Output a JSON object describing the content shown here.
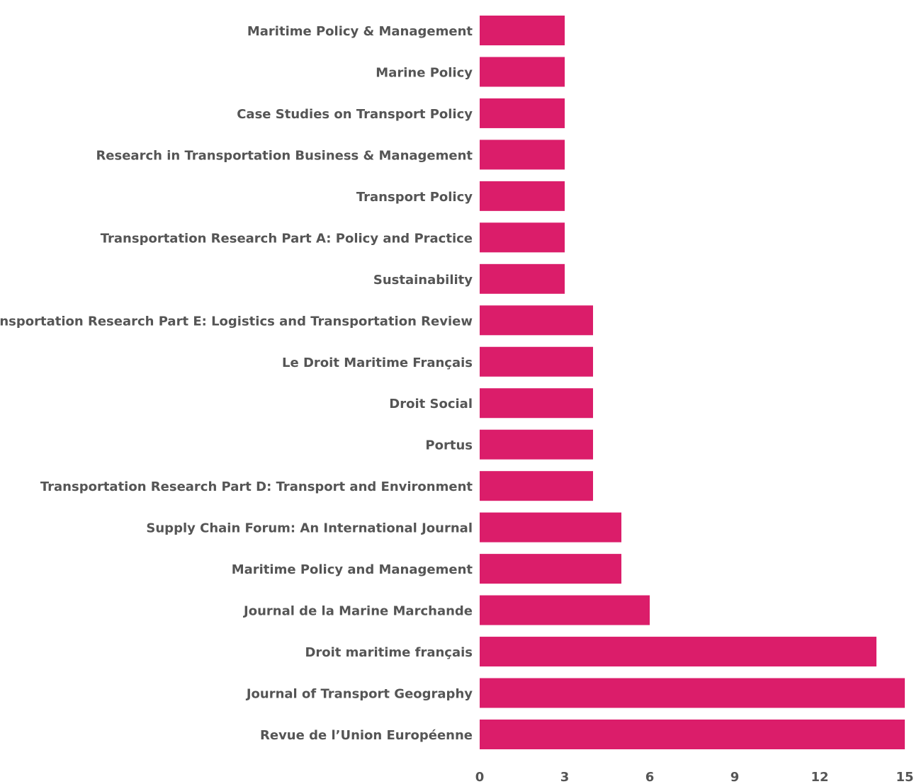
{
  "chart_data": {
    "type": "bar",
    "orientation": "horizontal",
    "categories": [
      "Maritime Policy & Management",
      "Marine Policy",
      "Case Studies on Transport Policy",
      "Research in Transportation Business & Management",
      "Transport Policy",
      "Transportation Research Part A: Policy and Practice",
      "Sustainability",
      "Transportation Research Part E: Logistics and Transportation Review",
      "Le Droit Maritime Français",
      "Droit Social",
      "Portus",
      "Transportation Research Part D: Transport and Environment",
      "Supply Chain Forum: An International Journal",
      "Maritime Policy and Management",
      "Journal de la Marine Marchande",
      "Droit maritime français",
      "Journal of Transport Geography",
      "Revue de l’Union Européenne"
    ],
    "values": [
      3,
      3,
      3,
      3,
      3,
      3,
      3,
      4,
      4,
      4,
      4,
      4,
      5,
      5,
      6,
      14,
      15,
      15
    ],
    "color": "#db1d6a",
    "xlim": [
      0,
      15
    ],
    "xticks": [
      0,
      3,
      6,
      9,
      12,
      15
    ],
    "grid": false
  }
}
